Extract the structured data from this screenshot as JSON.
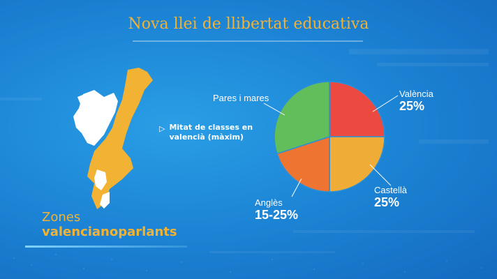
{
  "title": "Nova llei de llibertat educativa",
  "map": {
    "note_lines": [
      "Mitat de classes en",
      "valencià (màxim)"
    ],
    "zones_line1": "Zones",
    "zones_line2": "valencianoparlants",
    "colors": {
      "valencian_zone": "#f2b233",
      "other_zone": "#ffffff"
    }
  },
  "chart_data": {
    "type": "pie",
    "slices": [
      {
        "label": "València",
        "value_label": "25%",
        "value": 25,
        "color": "#ec4a41"
      },
      {
        "label": "Castellà",
        "value_label": "25%",
        "value": 25,
        "color": "#efac36"
      },
      {
        "label": "Anglès",
        "value_label": "15-25%",
        "value": 20,
        "color": "#ed7431"
      },
      {
        "label": "Pares i mares",
        "value_label": "",
        "value": 30,
        "color": "#62be5b"
      }
    ],
    "start_angle_deg": -90,
    "direction": "clockwise"
  }
}
